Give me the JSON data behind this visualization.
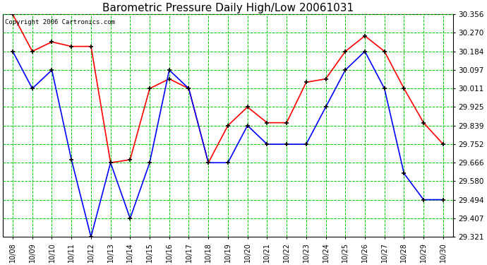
{
  "title": "Barometric Pressure Daily High/Low 20061031",
  "copyright": "Copyright 2006 Cartronics.com",
  "dates": [
    "10/08",
    "10/09",
    "10/10",
    "10/11",
    "10/12",
    "10/13",
    "10/14",
    "10/15",
    "10/16",
    "10/17",
    "10/18",
    "10/19",
    "10/20",
    "10/21",
    "10/22",
    "10/23",
    "10/24",
    "10/25",
    "10/26",
    "10/27",
    "10/28",
    "10/29",
    "10/30"
  ],
  "high": [
    30.356,
    30.184,
    30.228,
    30.207,
    30.207,
    29.666,
    29.68,
    30.011,
    30.056,
    30.011,
    29.666,
    29.839,
    29.925,
    29.852,
    29.852,
    30.04,
    30.056,
    30.184,
    30.256,
    30.184,
    30.011,
    29.852,
    29.752
  ],
  "low": [
    30.184,
    30.011,
    30.097,
    29.68,
    29.321,
    29.666,
    29.407,
    29.666,
    30.097,
    30.011,
    29.666,
    29.666,
    29.839,
    29.752,
    29.752,
    29.752,
    29.925,
    30.097,
    30.184,
    30.011,
    29.616,
    29.494,
    29.494
  ],
  "yticks": [
    29.321,
    29.407,
    29.494,
    29.58,
    29.666,
    29.752,
    29.839,
    29.925,
    30.011,
    30.097,
    30.184,
    30.27,
    30.356
  ],
  "ymin": 29.321,
  "ymax": 30.356,
  "high_color": "#ff0000",
  "low_color": "#0000ff",
  "grid_color": "#00cc00",
  "bg_color": "#ffffff",
  "title_fontsize": 11,
  "copyright_fontsize": 6.5
}
